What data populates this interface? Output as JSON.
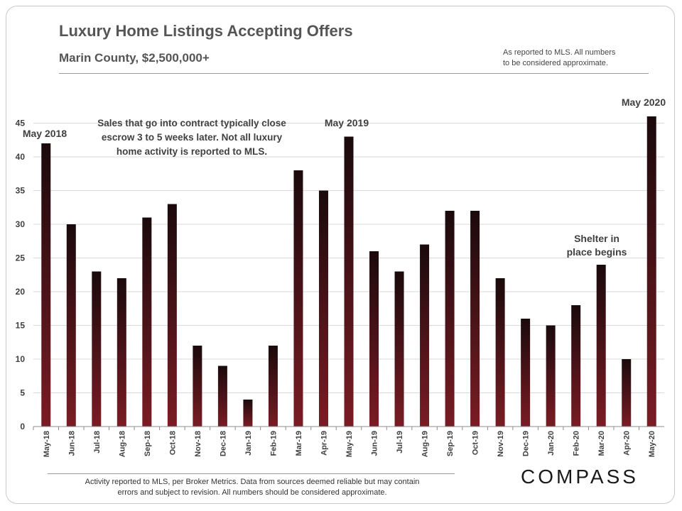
{
  "header": {
    "title": "Luxury Home Listings Accepting Offers",
    "subtitle": "Marin County,  $2,500,000+",
    "note_line1": "As reported to MLS. All numbers",
    "note_line2": "to be considered approximate."
  },
  "footer": {
    "line1": "Activity reported to MLS, per Broker Metrics. Data from sources deemed reliable but may contain",
    "line2": "errors and subject to revision. All numbers should be considered approximate.",
    "logo": "COMPASS"
  },
  "chart_data": {
    "type": "bar",
    "title": "Luxury Home Listings Accepting Offers",
    "xlabel": "",
    "ylabel": "",
    "ylim": [
      0,
      48
    ],
    "yticks": [
      0,
      5,
      10,
      15,
      20,
      25,
      30,
      35,
      40,
      45
    ],
    "grid": true,
    "categories": [
      "May-18",
      "Jun-18",
      "Jul-18",
      "Aug-18",
      "Sep-18",
      "Oct-18",
      "Nov-18",
      "Dec-18",
      "Jan-19",
      "Feb-19",
      "Mar-19",
      "Apr-19",
      "May-19",
      "Jun-19",
      "Jul-19",
      "Aug-19",
      "Sep-19",
      "Oct-19",
      "Nov-19",
      "Dec-19",
      "Jan-20",
      "Feb-20",
      "Mar-20",
      "Apr-20",
      "May-20"
    ],
    "values": [
      42,
      30,
      23,
      22,
      31,
      33,
      12,
      9,
      4,
      12,
      38,
      35,
      43,
      26,
      23,
      27,
      32,
      32,
      22,
      16,
      15,
      18,
      24,
      10,
      46
    ],
    "colors": {
      "bar_top": "#1a0a0c",
      "bar_bottom": "#7a1c24",
      "grid": "#d9d9d9",
      "axis": "#8c8c8c"
    },
    "annotations": {
      "note_line1": "Sales that go into contract typically close",
      "note_line2": "escrow 3 to 5 weeks later. Not all luxury",
      "note_line3": "home activity is reported to MLS.",
      "may2018": "May 2018",
      "may2019": "May 2019",
      "may2020": "May 2020",
      "shelter_line1": "Shelter in",
      "shelter_line2": "place begins"
    }
  }
}
